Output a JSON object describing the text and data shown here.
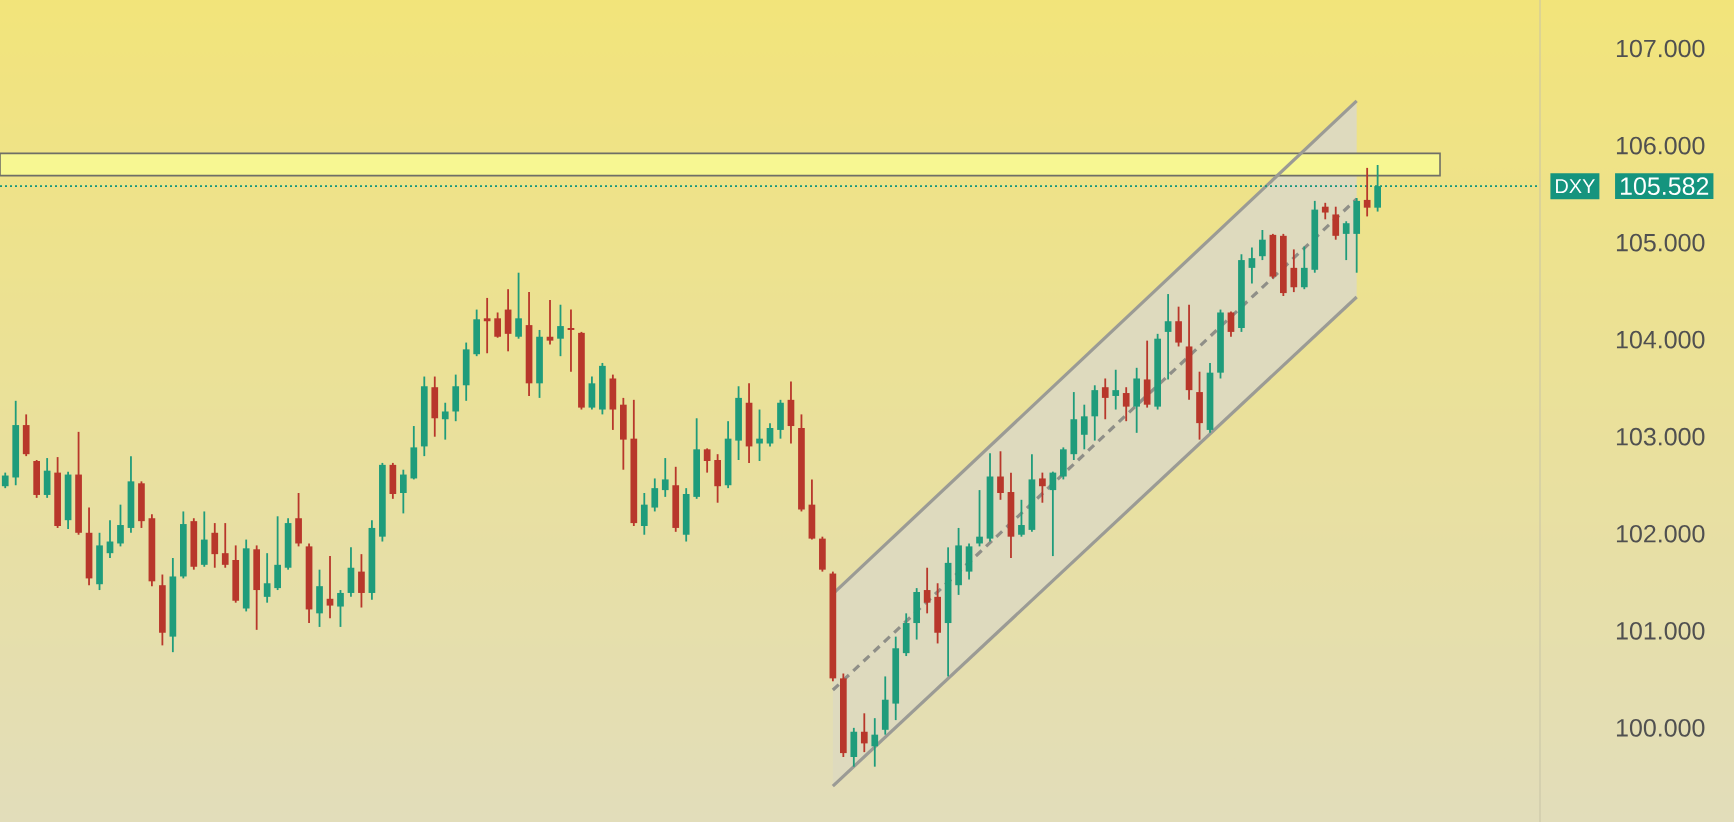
{
  "chart_data": {
    "type": "candlestick",
    "categories": [
      null,
      null,
      null,
      null,
      null,
      null,
      null,
      null,
      null,
      null,
      null,
      null,
      null,
      null,
      null,
      null,
      null,
      null,
      null,
      null,
      null,
      null,
      null,
      null,
      null,
      null,
      null,
      null,
      null,
      null,
      null,
      null,
      null,
      null,
      null,
      null,
      null,
      null,
      null,
      null,
      null,
      null,
      null,
      null,
      null,
      null,
      null,
      null,
      null,
      null,
      null,
      null,
      null,
      null,
      null,
      null,
      null,
      null,
      null,
      null,
      null,
      null,
      null,
      null,
      null,
      null,
      null,
      null,
      null,
      null,
      null,
      null,
      null,
      null,
      null,
      null,
      null,
      null,
      null,
      null,
      null,
      null,
      null,
      null,
      null,
      null,
      null,
      null,
      null,
      null,
      null,
      null,
      null,
      null,
      null,
      null,
      null,
      null,
      null,
      null,
      null,
      null,
      null,
      null,
      null,
      null,
      null,
      null,
      null,
      null,
      null,
      null,
      null,
      null,
      null,
      null,
      null,
      null,
      null,
      null,
      null,
      null,
      null,
      null,
      null,
      null,
      null,
      null,
      null,
      null,
      null,
      null,
      null,
      null,
      null,
      null,
      null,
      null,
      null,
      null,
      null,
      null,
      null,
      null,
      null,
      null,
      null
    ],
    "ohlc": [
      [
        102.49,
        102.63,
        102.47,
        102.6
      ],
      [
        102.58,
        103.37,
        102.5,
        103.12
      ],
      [
        103.12,
        103.23,
        102.8,
        102.82
      ],
      [
        102.75,
        102.76,
        102.37,
        102.4
      ],
      [
        102.4,
        102.78,
        102.37,
        102.65
      ],
      [
        102.63,
        102.79,
        102.06,
        102.08
      ],
      [
        102.14,
        102.64,
        102.05,
        102.61
      ],
      [
        102.61,
        103.05,
        101.99,
        102.01
      ],
      [
        102.01,
        102.27,
        101.47,
        101.54
      ],
      [
        101.48,
        102.01,
        101.42,
        101.88
      ],
      [
        101.8,
        102.14,
        101.75,
        101.92
      ],
      [
        101.9,
        102.3,
        101.87,
        102.09
      ],
      [
        102.06,
        102.8,
        102.01,
        102.54
      ],
      [
        102.52,
        102.54,
        102.06,
        102.13
      ],
      [
        102.16,
        102.2,
        101.46,
        101.51
      ],
      [
        101.47,
        101.58,
        100.85,
        100.98
      ],
      [
        100.94,
        101.75,
        100.78,
        101.56
      ],
      [
        101.56,
        102.23,
        101.54,
        102.1
      ],
      [
        102.13,
        102.16,
        101.63,
        101.66
      ],
      [
        101.68,
        102.23,
        101.66,
        101.94
      ],
      [
        102.01,
        102.11,
        101.65,
        101.79
      ],
      [
        101.8,
        102.11,
        101.65,
        101.68
      ],
      [
        101.73,
        101.88,
        101.29,
        101.31
      ],
      [
        101.23,
        101.94,
        101.2,
        101.85
      ],
      [
        101.84,
        101.88,
        101.01,
        101.42
      ],
      [
        101.35,
        101.8,
        101.29,
        101.49
      ],
      [
        101.44,
        102.18,
        101.42,
        101.68
      ],
      [
        101.65,
        102.16,
        101.63,
        102.11
      ],
      [
        102.16,
        102.42,
        101.87,
        101.9
      ],
      [
        101.87,
        101.9,
        101.08,
        101.22
      ],
      [
        101.18,
        101.63,
        101.04,
        101.46
      ],
      [
        101.33,
        101.77,
        101.13,
        101.26
      ],
      [
        101.25,
        101.42,
        101.04,
        101.39
      ],
      [
        101.39,
        101.86,
        101.35,
        101.65
      ],
      [
        101.61,
        101.79,
        101.24,
        101.39
      ],
      [
        101.39,
        102.14,
        101.32,
        102.06
      ],
      [
        101.97,
        102.73,
        101.92,
        102.71
      ],
      [
        102.71,
        102.73,
        102.36,
        102.41
      ],
      [
        102.42,
        102.66,
        102.21,
        102.61
      ],
      [
        102.57,
        103.11,
        102.56,
        102.89
      ],
      [
        102.9,
        103.62,
        102.8,
        103.52
      ],
      [
        103.51,
        103.62,
        103.0,
        103.19
      ],
      [
        103.18,
        103.35,
        102.97,
        103.26
      ],
      [
        103.26,
        103.64,
        103.16,
        103.52
      ],
      [
        103.53,
        103.97,
        103.37,
        103.9
      ],
      [
        103.85,
        104.31,
        103.83,
        104.21
      ],
      [
        104.22,
        104.43,
        103.86,
        104.19
      ],
      [
        104.22,
        104.28,
        104.02,
        104.03
      ],
      [
        104.31,
        104.52,
        103.88,
        104.06
      ],
      [
        104.03,
        104.69,
        104.01,
        104.22
      ],
      [
        104.15,
        104.49,
        103.42,
        103.55
      ],
      [
        103.55,
        104.1,
        103.4,
        104.03
      ],
      [
        104.03,
        104.41,
        103.95,
        103.99
      ],
      [
        104.01,
        104.36,
        103.83,
        104.14
      ],
      [
        104.12,
        104.31,
        103.67,
        104.1
      ],
      [
        104.07,
        104.08,
        103.28,
        103.3
      ],
      [
        103.3,
        103.62,
        103.28,
        103.55
      ],
      [
        103.28,
        103.76,
        103.23,
        103.73
      ],
      [
        103.6,
        103.64,
        103.07,
        103.28
      ],
      [
        103.33,
        103.4,
        102.66,
        102.97
      ],
      [
        102.98,
        103.38,
        102.08,
        102.11
      ],
      [
        102.08,
        102.42,
        101.99,
        102.3
      ],
      [
        102.27,
        102.57,
        102.23,
        102.47
      ],
      [
        102.45,
        102.78,
        102.38,
        102.56
      ],
      [
        102.5,
        102.69,
        102.02,
        102.06
      ],
      [
        101.99,
        102.47,
        101.92,
        102.41
      ],
      [
        102.38,
        103.19,
        102.36,
        102.87
      ],
      [
        102.87,
        102.88,
        102.63,
        102.75
      ],
      [
        102.76,
        102.82,
        102.32,
        102.49
      ],
      [
        102.5,
        103.16,
        102.47,
        102.98
      ],
      [
        102.96,
        103.52,
        102.76,
        103.4
      ],
      [
        103.35,
        103.55,
        102.73,
        102.9
      ],
      [
        102.93,
        103.28,
        102.75,
        102.98
      ],
      [
        102.93,
        103.14,
        102.9,
        103.09
      ],
      [
        103.07,
        103.38,
        102.98,
        103.35
      ],
      [
        103.38,
        103.57,
        102.93,
        103.11
      ],
      [
        103.09,
        103.23,
        102.23,
        102.25
      ],
      [
        102.3,
        102.56,
        101.94,
        101.95
      ],
      [
        101.95,
        101.97,
        101.61,
        101.63
      ],
      [
        101.59,
        101.61,
        100.48,
        100.51
      ],
      [
        100.51,
        100.56,
        99.7,
        99.74
      ],
      [
        99.7,
        100.0,
        99.6,
        99.96
      ],
      [
        99.96,
        100.15,
        99.75,
        99.84
      ],
      [
        99.81,
        100.1,
        99.6,
        99.93
      ],
      [
        99.98,
        100.53,
        99.93,
        100.29
      ],
      [
        100.25,
        100.94,
        100.08,
        100.82
      ],
      [
        100.77,
        101.18,
        100.74,
        101.08
      ],
      [
        101.08,
        101.44,
        100.91,
        101.4
      ],
      [
        101.42,
        101.65,
        101.18,
        101.29
      ],
      [
        101.35,
        101.49,
        100.87,
        100.98
      ],
      [
        101.08,
        101.86,
        100.53,
        101.7
      ],
      [
        101.47,
        102.06,
        101.37,
        101.88
      ],
      [
        101.61,
        101.9,
        101.53,
        101.87
      ],
      [
        101.9,
        102.45,
        101.87,
        101.97
      ],
      [
        101.95,
        102.83,
        101.92,
        102.59
      ],
      [
        102.59,
        102.85,
        102.35,
        102.42
      ],
      [
        102.43,
        102.63,
        101.75,
        101.97
      ],
      [
        101.99,
        102.35,
        101.97,
        102.09
      ],
      [
        102.04,
        102.82,
        102.02,
        102.56
      ],
      [
        102.57,
        102.63,
        102.32,
        102.49
      ],
      [
        102.45,
        102.64,
        101.77,
        102.63
      ],
      [
        102.59,
        102.89,
        102.56,
        102.87
      ],
      [
        102.82,
        103.46,
        102.76,
        103.18
      ],
      [
        103.02,
        103.33,
        102.87,
        103.21
      ],
      [
        103.21,
        103.53,
        102.96,
        103.48
      ],
      [
        103.51,
        103.6,
        103.18,
        103.4
      ],
      [
        103.42,
        103.69,
        103.28,
        103.48
      ],
      [
        103.45,
        103.51,
        103.16,
        103.31
      ],
      [
        103.31,
        103.71,
        103.04,
        103.6
      ],
      [
        103.59,
        103.99,
        103.3,
        103.33
      ],
      [
        103.31,
        104.06,
        103.28,
        104.01
      ],
      [
        104.08,
        104.47,
        103.59,
        104.19
      ],
      [
        104.19,
        104.34,
        103.93,
        103.97
      ],
      [
        103.93,
        104.36,
        103.38,
        103.48
      ],
      [
        103.46,
        103.67,
        102.97,
        103.14
      ],
      [
        103.07,
        103.76,
        103.04,
        103.66
      ],
      [
        103.66,
        104.31,
        103.6,
        104.28
      ],
      [
        104.28,
        104.29,
        104.03,
        104.08
      ],
      [
        104.12,
        104.88,
        104.08,
        104.82
      ],
      [
        104.74,
        104.95,
        104.58,
        104.84
      ],
      [
        104.86,
        105.13,
        104.82,
        105.03
      ],
      [
        105.08,
        105.09,
        104.63,
        104.65
      ],
      [
        105.07,
        105.09,
        104.45,
        104.48
      ],
      [
        104.74,
        104.93,
        104.49,
        104.54
      ],
      [
        104.54,
        104.96,
        104.52,
        104.74
      ],
      [
        104.72,
        105.43,
        104.69,
        105.34
      ],
      [
        105.37,
        105.41,
        105.24,
        105.31
      ],
      [
        105.29,
        105.37,
        105.03,
        105.07
      ],
      [
        105.09,
        105.22,
        104.82,
        105.2
      ],
      [
        105.09,
        105.46,
        104.69,
        105.43
      ],
      [
        105.44,
        105.77,
        105.27,
        105.36
      ],
      [
        105.36,
        105.8,
        105.32,
        105.582
      ],
      null,
      null,
      null,
      null,
      null,
      null,
      null,
      null,
      null,
      null,
      null,
      null,
      null,
      null,
      null
    ],
    "colors": [
      "#1f9c7b",
      "#1f9c7b",
      "#b8372b",
      "#b8372b",
      "#1f9c7b",
      "#b8372b",
      "#1f9c7b",
      "#b8372b",
      "#b8372b",
      "#1f9c7b",
      "#1f9c7b",
      "#1f9c7b",
      "#1f9c7b",
      "#b8372b",
      "#b8372b",
      "#b8372b",
      "#1f9c7b",
      "#1f9c7b",
      "#b8372b",
      "#1f9c7b",
      "#b8372b",
      "#b8372b",
      "#b8372b",
      "#1f9c7b",
      "#b8372b",
      "#1f9c7b",
      "#1f9c7b",
      "#1f9c7b",
      "#b8372b",
      "#b8372b",
      "#1f9c7b",
      "#b8372b",
      "#1f9c7b",
      "#1f9c7b",
      "#b8372b",
      "#1f9c7b",
      "#1f9c7b",
      "#b8372b",
      "#1f9c7b",
      "#1f9c7b",
      "#1f9c7b",
      "#b8372b",
      "#1f9c7b",
      "#1f9c7b",
      "#1f9c7b",
      "#1f9c7b",
      "#b8372b",
      "#b8372b",
      "#b8372b",
      "#1f9c7b",
      "#b8372b",
      "#1f9c7b",
      "#b8372b",
      "#1f9c7b",
      "#b8372b",
      "#b8372b",
      "#1f9c7b",
      "#1f9c7b",
      "#b8372b",
      "#b8372b",
      "#b8372b",
      "#1f9c7b",
      "#1f9c7b",
      "#1f9c7b",
      "#b8372b",
      "#1f9c7b",
      "#1f9c7b",
      "#b8372b",
      "#b8372b",
      "#1f9c7b",
      "#1f9c7b",
      "#b8372b",
      "#1f9c7b",
      "#1f9c7b",
      "#1f9c7b",
      "#b8372b",
      "#b8372b",
      "#b8372b",
      "#b8372b",
      "#b8372b",
      "#b8372b",
      "#1f9c7b",
      "#b8372b",
      "#1f9c7b",
      "#1f9c7b",
      "#1f9c7b",
      "#1f9c7b",
      "#1f9c7b",
      "#b8372b",
      "#b8372b",
      "#1f9c7b",
      "#1f9c7b",
      "#1f9c7b",
      "#1f9c7b",
      "#1f9c7b",
      "#b8372b",
      "#b8372b",
      "#1f9c7b",
      "#1f9c7b",
      "#b8372b",
      "#1f9c7b",
      "#1f9c7b",
      "#1f9c7b",
      "#1f9c7b",
      "#1f9c7b",
      "#b8372b",
      "#1f9c7b",
      "#b8372b",
      "#1f9c7b",
      "#b8372b",
      "#1f9c7b",
      "#1f9c7b",
      "#b8372b",
      "#b8372b",
      "#b8372b",
      "#1f9c7b",
      "#1f9c7b",
      "#b8372b",
      "#1f9c7b",
      "#1f9c7b",
      "#1f9c7b",
      "#b8372b",
      "#b8372b",
      "#b8372b",
      "#1f9c7b",
      "#1f9c7b",
      "#b8372b",
      "#b8372b",
      "#1f9c7b",
      "#1f9c7b",
      "#b8372b",
      "#1f9c7b",
      null,
      null,
      null,
      null,
      null,
      null,
      null,
      null,
      null,
      null,
      null,
      null,
      null,
      null,
      null
    ],
    "series": [
      {
        "type": "line",
        "values": [
          null,
          null,
          null,
          null,
          null,
          null,
          null,
          null,
          null,
          null,
          null,
          null,
          null,
          null,
          null,
          null,
          null,
          null,
          null,
          null,
          null,
          null,
          null,
          null,
          null,
          null,
          null,
          null,
          null,
          null,
          null,
          null,
          null,
          null,
          null,
          null,
          null,
          null,
          null,
          null,
          null,
          null,
          null,
          null,
          null,
          null,
          null,
          null,
          null,
          null,
          null,
          null,
          null,
          null,
          null,
          null,
          null,
          null,
          null,
          null,
          null,
          null,
          null,
          null,
          null,
          null,
          null,
          null,
          null,
          null,
          null,
          null,
          null,
          null,
          null,
          null,
          null,
          null,
          null,
          101.38,
          null,
          null,
          null,
          null,
          null,
          null,
          null,
          null,
          null,
          null,
          null,
          null,
          null,
          null,
          null,
          null,
          null,
          null,
          null,
          null,
          null,
          null,
          null,
          null,
          null,
          null,
          null,
          null,
          null,
          null,
          null,
          null,
          null,
          null,
          null,
          null,
          null,
          null,
          null,
          null,
          null,
          null,
          null,
          null,
          null,
          null,
          null,
          null,
          null,
          106.46,
          null,
          null,
          null,
          null,
          null,
          null,
          null,
          null,
          null,
          null,
          null,
          null,
          null,
          null,
          null,
          null,
          null
        ],
        "color": "#9b9b95",
        "line_style": "solid"
      },
      {
        "type": "line",
        "values": [
          null,
          null,
          null,
          null,
          null,
          null,
          null,
          null,
          null,
          null,
          null,
          null,
          null,
          null,
          null,
          null,
          null,
          null,
          null,
          null,
          null,
          null,
          null,
          null,
          null,
          null,
          null,
          null,
          null,
          null,
          null,
          null,
          null,
          null,
          null,
          null,
          null,
          null,
          null,
          null,
          null,
          null,
          null,
          null,
          null,
          null,
          null,
          null,
          null,
          null,
          null,
          null,
          null,
          null,
          null,
          null,
          null,
          null,
          null,
          null,
          null,
          null,
          null,
          null,
          null,
          null,
          null,
          null,
          null,
          null,
          null,
          null,
          null,
          null,
          null,
          null,
          null,
          null,
          null,
          99.4,
          null,
          null,
          null,
          null,
          null,
          null,
          null,
          null,
          null,
          null,
          null,
          null,
          null,
          null,
          null,
          null,
          null,
          null,
          null,
          null,
          null,
          null,
          null,
          null,
          null,
          null,
          null,
          null,
          null,
          null,
          null,
          null,
          null,
          null,
          null,
          null,
          null,
          null,
          null,
          null,
          null,
          null,
          null,
          null,
          null,
          null,
          null,
          null,
          null,
          104.44,
          null,
          null,
          null,
          null,
          null,
          null,
          null,
          null,
          null,
          null,
          null,
          null,
          null,
          null,
          null,
          null,
          null
        ],
        "color": "#9b9b95",
        "line_style": "solid"
      },
      {
        "type": "line",
        "values": [
          null,
          null,
          null,
          null,
          null,
          null,
          null,
          null,
          null,
          null,
          null,
          null,
          null,
          null,
          null,
          null,
          null,
          null,
          null,
          null,
          null,
          null,
          null,
          null,
          null,
          null,
          null,
          null,
          null,
          null,
          null,
          null,
          null,
          null,
          null,
          null,
          null,
          null,
          null,
          null,
          null,
          null,
          null,
          null,
          null,
          null,
          null,
          null,
          null,
          null,
          null,
          null,
          null,
          null,
          null,
          null,
          null,
          null,
          null,
          null,
          null,
          null,
          null,
          null,
          null,
          null,
          null,
          null,
          null,
          null,
          null,
          null,
          null,
          null,
          null,
          null,
          null,
          null,
          null,
          100.39,
          null,
          null,
          null,
          null,
          null,
          null,
          null,
          null,
          null,
          null,
          null,
          null,
          null,
          null,
          null,
          null,
          null,
          null,
          null,
          null,
          null,
          null,
          null,
          null,
          null,
          null,
          null,
          null,
          null,
          null,
          null,
          null,
          null,
          null,
          null,
          null,
          null,
          null,
          null,
          null,
          null,
          null,
          null,
          null,
          null,
          null,
          null,
          null,
          null,
          105.45,
          null,
          null,
          null,
          null,
          null,
          null,
          null,
          null,
          null,
          null,
          null,
          null,
          null,
          null,
          null,
          null,
          null
        ],
        "lower": [
          null,
          null,
          null,
          null,
          null,
          null,
          null,
          null,
          null,
          null,
          null,
          null,
          null,
          null,
          null,
          null,
          null,
          null,
          null,
          null,
          null,
          null,
          null,
          null,
          null,
          null,
          null,
          null,
          null,
          null,
          null,
          null,
          null,
          null,
          null,
          null,
          null,
          null,
          null,
          null,
          null,
          null,
          null,
          null,
          null,
          null,
          null,
          null,
          null,
          null,
          null,
          null,
          null,
          null,
          null,
          null,
          null,
          null,
          null,
          null,
          null,
          null,
          null,
          null,
          null,
          null,
          null,
          null,
          null,
          null,
          null,
          null,
          null,
          null,
          null,
          null,
          null,
          null,
          null,
          99.4,
          null,
          null,
          null,
          null,
          null,
          null,
          null,
          null,
          null,
          null,
          null,
          null,
          null,
          null,
          null,
          null,
          null,
          null,
          null,
          null,
          null,
          null,
          null,
          null,
          null,
          null,
          null,
          null,
          null,
          null,
          null,
          null,
          null,
          null,
          null,
          null,
          null,
          null,
          null,
          null,
          null,
          null,
          null,
          null,
          null,
          null,
          null,
          null,
          null,
          104.44,
          null,
          null,
          null,
          null,
          null,
          null,
          null,
          null,
          null,
          null,
          null,
          null,
          null,
          null,
          null,
          null,
          null
        ],
        "upper": [
          null,
          null,
          null,
          null,
          null,
          null,
          null,
          null,
          null,
          null,
          null,
          null,
          null,
          null,
          null,
          null,
          null,
          null,
          null,
          null,
          null,
          null,
          null,
          null,
          null,
          null,
          null,
          null,
          null,
          null,
          null,
          null,
          null,
          null,
          null,
          null,
          null,
          null,
          null,
          null,
          null,
          null,
          null,
          null,
          null,
          null,
          null,
          null,
          null,
          null,
          null,
          null,
          null,
          null,
          null,
          null,
          null,
          null,
          null,
          null,
          null,
          null,
          null,
          null,
          null,
          null,
          null,
          null,
          null,
          null,
          null,
          null,
          null,
          null,
          null,
          null,
          null,
          null,
          null,
          101.38,
          null,
          null,
          null,
          null,
          null,
          null,
          null,
          null,
          null,
          null,
          null,
          null,
          null,
          null,
          null,
          null,
          null,
          null,
          null,
          null,
          null,
          null,
          null,
          null,
          null,
          null,
          null,
          null,
          null,
          null,
          null,
          null,
          null,
          null,
          null,
          null,
          null,
          null,
          null,
          null,
          null,
          null,
          null,
          null,
          null,
          null,
          null,
          null,
          null,
          106.46,
          null,
          null,
          null,
          null,
          null,
          null,
          null,
          null,
          null,
          null,
          null,
          null,
          null,
          null,
          null,
          null,
          null
        ],
        "color": "#8f8f88",
        "line_style": "dashed"
      }
    ],
    "ylim": [
      99.03,
      107.5
    ],
    "yticks": [
      {
        "value": 100,
        "label": "100.000"
      },
      {
        "value": 101,
        "label": "101.000"
      },
      {
        "value": 102,
        "label": "102.000"
      },
      {
        "value": 103,
        "label": "103.000"
      },
      {
        "value": 104,
        "label": "104.000"
      },
      {
        "value": 105,
        "label": "105.000"
      },
      {
        "value": 105.582,
        "label": "105.582"
      },
      {
        "value": 106,
        "label": "106.000"
      },
      {
        "value": 107,
        "label": "107.000"
      }
    ],
    "ref_lines": [
      {
        "axis": "y",
        "value": 105.582,
        "label": "DXY",
        "color": "#15947e",
        "line_style": "dotted"
      }
    ],
    "bands": [
      {
        "axis": "y",
        "from": 105.69,
        "to": 105.92,
        "color": "#6f6f66"
      }
    ]
  }
}
